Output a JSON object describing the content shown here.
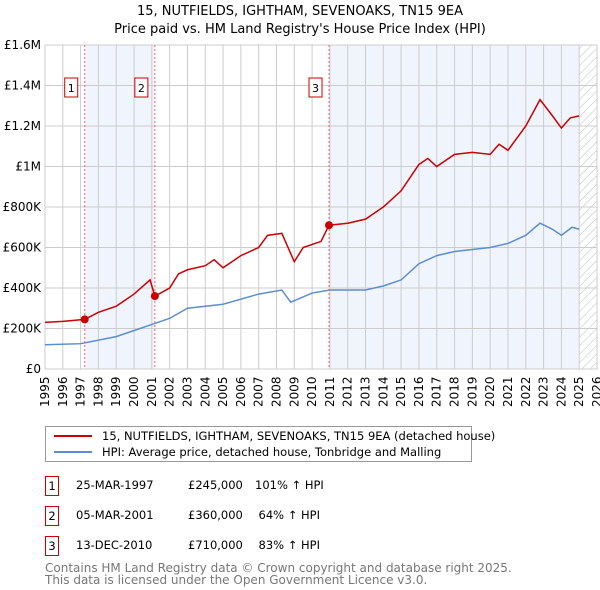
{
  "chart_data": {
    "type": "line",
    "title": "15, NUTFIELDS, IGHTHAM, SEVENOAKS, TN15 9EA",
    "subtitle": "Price paid vs. HM Land Registry's House Price Index (HPI)",
    "xlim": [
      1995,
      2026
    ],
    "ylim": [
      0,
      1600000
    ],
    "x_ticks": [
      "1995",
      "1996",
      "1997",
      "1998",
      "1999",
      "2000",
      "2001",
      "2002",
      "2003",
      "2004",
      "2005",
      "2006",
      "2007",
      "2008",
      "2009",
      "2010",
      "2011",
      "2012",
      "2013",
      "2014",
      "2015",
      "2016",
      "2017",
      "2018",
      "2019",
      "2020",
      "2021",
      "2022",
      "2023",
      "2024",
      "2025",
      "2026"
    ],
    "y_ticks": [
      {
        "v": 0,
        "label": "£0"
      },
      {
        "v": 200000,
        "label": "£200K"
      },
      {
        "v": 400000,
        "label": "£400K"
      },
      {
        "v": 600000,
        "label": "£600K"
      },
      {
        "v": 800000,
        "label": "£800K"
      },
      {
        "v": 1000000,
        "label": "£1M"
      },
      {
        "v": 1200000,
        "label": "£1.2M"
      },
      {
        "v": 1400000,
        "label": "£1.4M"
      },
      {
        "v": 1600000,
        "label": "£1.6M"
      }
    ],
    "grid": true,
    "series": [
      {
        "name": "15, NUTFIELDS, IGHTHAM, SEVENOAKS, TN15 9EA (detached house)",
        "color": "#cc0000",
        "x": [
          1995,
          1996,
          1997.23,
          1998,
          1999,
          2000,
          2000.9,
          2001.17,
          2002,
          2002.5,
          2003,
          2004,
          2004.5,
          2005,
          2006,
          2007,
          2007.5,
          2008.3,
          2009,
          2009.5,
          2010.5,
          2010.95,
          2012,
          2013,
          2014,
          2015,
          2016,
          2016.5,
          2017,
          2018,
          2019,
          2020,
          2020.5,
          2021,
          2022,
          2022.8,
          2023.5,
          2024,
          2024.5,
          2025
        ],
        "y": [
          230000,
          235000,
          245000,
          280000,
          310000,
          370000,
          440000,
          360000,
          400000,
          470000,
          490000,
          510000,
          540000,
          500000,
          560000,
          600000,
          660000,
          670000,
          530000,
          600000,
          630000,
          710000,
          720000,
          740000,
          800000,
          880000,
          1010000,
          1040000,
          1000000,
          1060000,
          1070000,
          1060000,
          1110000,
          1080000,
          1200000,
          1330000,
          1250000,
          1190000,
          1240000,
          1250000
        ]
      },
      {
        "name": "HPI: Average price, detached house, Tonbridge and Malling",
        "color": "#5b8dd0",
        "x": [
          1995,
          1997,
          1999,
          2001,
          2002,
          2003,
          2005,
          2007,
          2008.3,
          2008.8,
          2010,
          2011,
          2013,
          2014,
          2015,
          2016,
          2017,
          2018,
          2019,
          2020,
          2021,
          2022,
          2022.8,
          2023.5,
          2024,
          2024.6,
          2025
        ],
        "y": [
          120000,
          125000,
          160000,
          220000,
          250000,
          300000,
          320000,
          370000,
          390000,
          330000,
          375000,
          390000,
          390000,
          410000,
          440000,
          520000,
          560000,
          580000,
          590000,
          600000,
          620000,
          660000,
          720000,
          690000,
          660000,
          700000,
          690000
        ]
      }
    ],
    "sales": [
      {
        "id": "1",
        "x": 1997.23,
        "date": "25-MAR-1997",
        "price": "£245,000",
        "value": 245000,
        "hpi": "101% ↑ HPI"
      },
      {
        "id": "2",
        "x": 2001.17,
        "date": "05-MAR-2001",
        "price": "£360,000",
        "value": 360000,
        "hpi": "64% ↑ HPI"
      },
      {
        "id": "3",
        "x": 2010.95,
        "date": "13-DEC-2010",
        "price": "£710,000",
        "value": 710000,
        "hpi": "83% ↑ HPI"
      }
    ],
    "forecast_start": 2025.0
  },
  "footer": {
    "line1": "Contains HM Land Registry data © Crown copyright and database right 2025.",
    "line2": "This data is licensed under the Open Government Licence v3.0."
  }
}
